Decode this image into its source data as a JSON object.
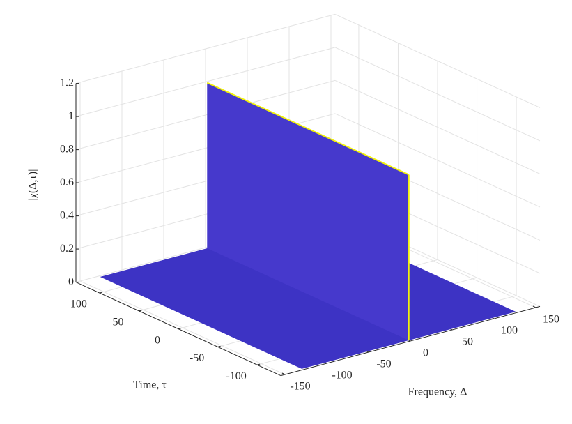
{
  "chart_data": {
    "type": "surface",
    "xlabel": "Frequency, Δ",
    "ylabel": "Time, τ",
    "zlabel": "|χ(Δ,τ)|",
    "x": [
      -128,
      128
    ],
    "y": [
      -128,
      128
    ],
    "base": 0,
    "ridge": {
      "x": 0,
      "values": [
        1,
        1
      ]
    },
    "xlim": [
      -155,
      155
    ],
    "ylim": [
      -130,
      130
    ],
    "zlim": [
      0,
      1.2
    ],
    "xticks": [
      -150,
      -100,
      -50,
      0,
      50,
      100,
      150
    ],
    "yticks": [
      -100,
      -50,
      0,
      50,
      100
    ],
    "zticks": [
      0,
      0.2,
      0.4,
      0.6,
      0.8,
      1,
      1.2
    ],
    "color": "#3d33c4",
    "ridge_color": "#4639cc",
    "edge_color": "#f2f20a",
    "grid": true
  }
}
